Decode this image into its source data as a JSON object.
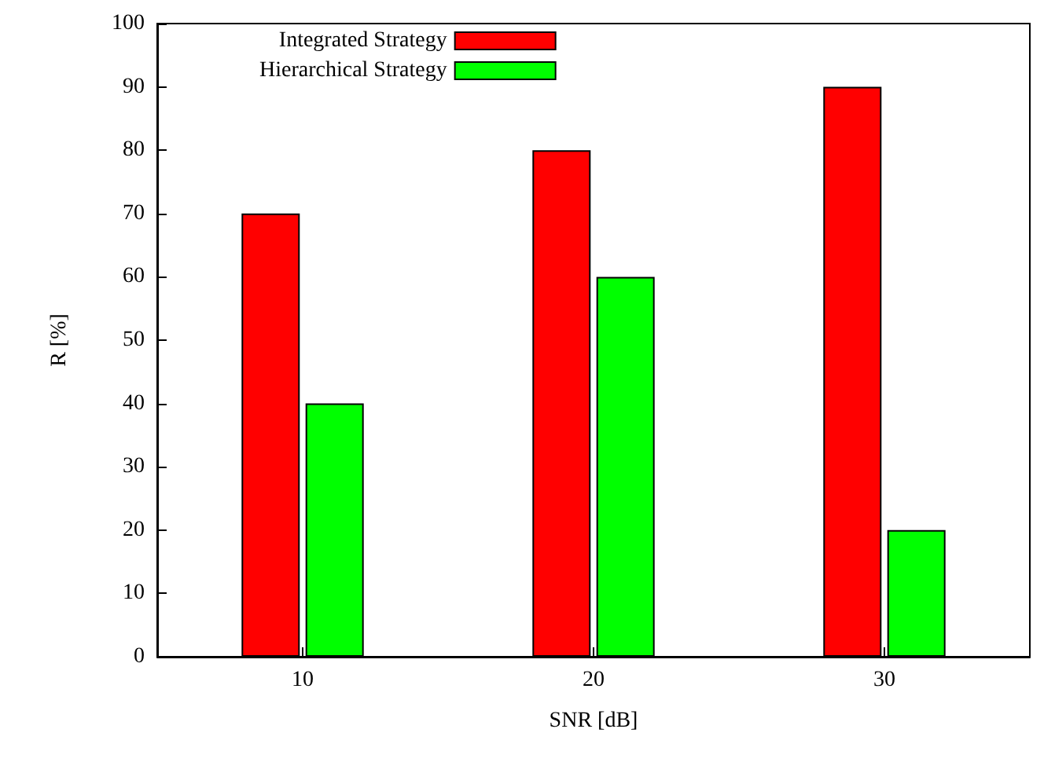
{
  "chart_data": {
    "type": "bar",
    "xlabel": "SNR [dB]",
    "ylabel": "R [%]",
    "categories": [
      "10",
      "20",
      "30"
    ],
    "series": [
      {
        "name": "Integrated Strategy",
        "color": "#ff0000",
        "values": [
          70,
          80,
          90
        ]
      },
      {
        "name": "Hierarchical Strategy",
        "color": "#00ff00",
        "values": [
          40,
          60,
          20
        ]
      }
    ],
    "ylim": [
      0,
      100
    ],
    "yticks": [
      0,
      10,
      20,
      30,
      40,
      50,
      60,
      70,
      80,
      90,
      100
    ],
    "grid": false,
    "legend": "top left"
  }
}
